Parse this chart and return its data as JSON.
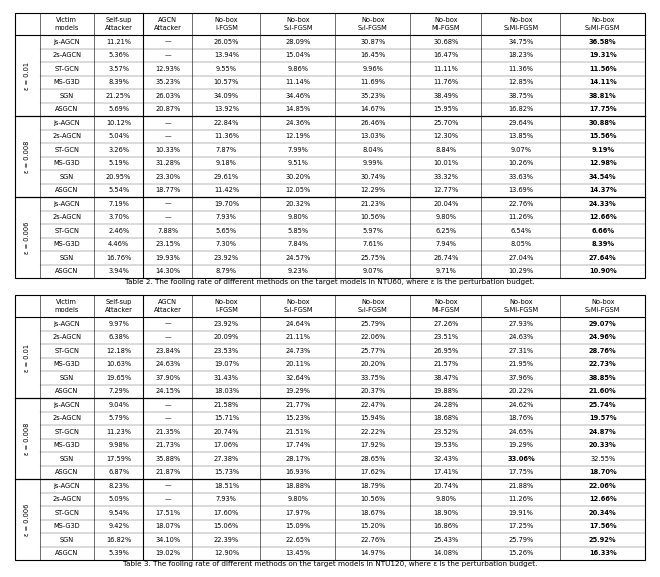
{
  "table2_caption": "Table 2. The fooling rate of different methods on the target models in NTU60, where ε is the perturbation budget.",
  "table3_caption": "Table 3. The fooling rate of different methods on the target models in NTU120, where ε is the perturbation budget.",
  "victim_models": [
    "js-AGCN",
    "2s-AGCN",
    "ST-GCN",
    "MS-G3D",
    "SGN",
    "ASGCN"
  ],
  "epsilon_labels": [
    "ε = 0.01",
    "ε = 0.008",
    "ε = 0.006"
  ],
  "table2": {
    "eps_0.01": {
      "js-AGCN": [
        "11.21%",
        "—",
        "26.05%",
        "28.09%",
        "30.87%",
        "30.68%",
        "34.75%",
        "36.58%"
      ],
      "2s-AGCN": [
        "5.36%",
        "—",
        "13.94%",
        "15.04%",
        "16.45%",
        "16.47%",
        "18.23%",
        "19.31%"
      ],
      "ST-GCN": [
        "3.57%",
        "12.93%",
        "9.55%",
        "9.86%",
        "9.96%",
        "11.11%",
        "11.36%",
        "11.56%"
      ],
      "MS-G3D": [
        "8.39%",
        "35.23%",
        "10.57%",
        "11.14%",
        "11.69%",
        "11.76%",
        "12.85%",
        "14.11%"
      ],
      "SGN": [
        "21.25%",
        "26.03%",
        "34.09%",
        "34.46%",
        "35.23%",
        "38.49%",
        "38.75%",
        "38.81%"
      ],
      "ASGCN": [
        "5.69%",
        "20.87%",
        "13.92%",
        "14.85%",
        "14.67%",
        "15.95%",
        "16.82%",
        "17.75%"
      ]
    },
    "eps_0.008": {
      "js-AGCN": [
        "10.12%",
        "—",
        "22.84%",
        "24.36%",
        "26.46%",
        "25.70%",
        "29.64%",
        "30.88%"
      ],
      "2s-AGCN": [
        "5.04%",
        "—",
        "11.36%",
        "12.19%",
        "13.03%",
        "12.30%",
        "13.85%",
        "15.56%"
      ],
      "ST-GCN": [
        "3.26%",
        "10.33%",
        "7.87%",
        "7.99%",
        "8.04%",
        "8.84%",
        "9.07%",
        "9.19%"
      ],
      "MS-G3D": [
        "5.19%",
        "31.28%",
        "9.18%",
        "9.51%",
        "9.99%",
        "10.01%",
        "10.26%",
        "12.98%"
      ],
      "SGN": [
        "20.95%",
        "23.30%",
        "29.61%",
        "30.20%",
        "30.74%",
        "33.32%",
        "33.63%",
        "34.54%"
      ],
      "ASGCN": [
        "5.54%",
        "18.77%",
        "11.42%",
        "12.05%",
        "12.29%",
        "12.77%",
        "13.69%",
        "14.37%"
      ]
    },
    "eps_0.006": {
      "js-AGCN": [
        "7.19%",
        "—",
        "19.70%",
        "20.32%",
        "21.23%",
        "20.04%",
        "22.76%",
        "24.33%"
      ],
      "2s-AGCN": [
        "3.70%",
        "—",
        "7.93%",
        "9.80%",
        "10.56%",
        "9.80%",
        "11.26%",
        "12.66%"
      ],
      "ST-GCN": [
        "2.46%",
        "7.88%",
        "5.65%",
        "5.85%",
        "5.97%",
        "6.25%",
        "6.54%",
        "6.66%"
      ],
      "MS-G3D": [
        "4.46%",
        "23.15%",
        "7.30%",
        "7.84%",
        "7.61%",
        "7.94%",
        "8.05%",
        "8.39%"
      ],
      "SGN": [
        "16.76%",
        "19.93%",
        "23.92%",
        "24.57%",
        "25.75%",
        "26.74%",
        "27.04%",
        "27.64%"
      ],
      "ASGCN": [
        "3.94%",
        "14.30%",
        "8.79%",
        "9.23%",
        "9.07%",
        "9.71%",
        "10.29%",
        "10.90%"
      ]
    }
  },
  "table3": {
    "eps_0.01": {
      "js-AGCN": [
        "9.97%",
        "—",
        "23.92%",
        "24.64%",
        "25.79%",
        "27.26%",
        "27.93%",
        "29.07%"
      ],
      "2s-AGCN": [
        "6.38%",
        "—",
        "20.09%",
        "21.11%",
        "22.06%",
        "23.51%",
        "24.63%",
        "24.96%"
      ],
      "ST-GCN": [
        "12.18%",
        "23.84%",
        "23.53%",
        "24.73%",
        "25.77%",
        "26.95%",
        "27.31%",
        "28.76%"
      ],
      "MS-G3D": [
        "10.63%",
        "24.63%",
        "19.07%",
        "20.11%",
        "20.20%",
        "21.57%",
        "21.95%",
        "22.73%"
      ],
      "SGN": [
        "19.65%",
        "37.90%",
        "31.43%",
        "32.64%",
        "33.75%",
        "38.47%",
        "37.96%",
        "38.85%"
      ],
      "ASGCN": [
        "7.29%",
        "24.15%",
        "18.03%",
        "19.29%",
        "20.37%",
        "19.88%",
        "20.22%",
        "21.60%"
      ]
    },
    "eps_0.008": {
      "js-AGCN": [
        "9.04%",
        "—",
        "21.58%",
        "21.77%",
        "22.47%",
        "24.28%",
        "24.62%",
        "25.74%"
      ],
      "2s-AGCN": [
        "5.79%",
        "—",
        "15.71%",
        "15.23%",
        "15.94%",
        "18.68%",
        "18.76%",
        "19.57%"
      ],
      "ST-GCN": [
        "11.23%",
        "21.35%",
        "20.74%",
        "21.51%",
        "22.22%",
        "23.52%",
        "24.65%",
        "24.87%"
      ],
      "MS-G3D": [
        "9.98%",
        "21.73%",
        "17.06%",
        "17.74%",
        "17.92%",
        "19.53%",
        "19.29%",
        "20.33%"
      ],
      "SGN": [
        "17.59%",
        "35.88%",
        "27.38%",
        "28.17%",
        "28.65%",
        "32.43%",
        "33.06%",
        "32.55%"
      ],
      "ASGCN": [
        "6.87%",
        "21.87%",
        "15.73%",
        "16.93%",
        "17.62%",
        "17.41%",
        "17.75%",
        "18.70%"
      ]
    },
    "eps_0.006": {
      "js-AGCN": [
        "8.23%",
        "—",
        "18.51%",
        "18.88%",
        "18.79%",
        "20.74%",
        "21.88%",
        "22.06%"
      ],
      "2s-AGCN": [
        "5.09%",
        "—",
        "7.93%",
        "9.80%",
        "10.56%",
        "9.80%",
        "11.26%",
        "12.66%"
      ],
      "ST-GCN": [
        "9.54%",
        "17.51%",
        "17.60%",
        "17.97%",
        "18.67%",
        "18.90%",
        "19.91%",
        "20.34%"
      ],
      "MS-G3D": [
        "9.42%",
        "18.07%",
        "15.06%",
        "15.09%",
        "15.20%",
        "16.86%",
        "17.25%",
        "17.56%"
      ],
      "SGN": [
        "16.82%",
        "34.10%",
        "22.39%",
        "22.65%",
        "22.76%",
        "25.43%",
        "25.79%",
        "25.92%"
      ],
      "ASGCN": [
        "5.39%",
        "19.02%",
        "12.90%",
        "13.45%",
        "14.97%",
        "14.08%",
        "15.26%",
        "16.33%"
      ]
    }
  },
  "bold_cells_t2": {
    "eps_0.01": {
      "js-AGCN": [
        7
      ],
      "2s-AGCN": [
        7
      ],
      "ST-GCN": [
        7
      ],
      "MS-G3D": [
        7
      ],
      "SGN": [
        7
      ],
      "ASGCN": [
        7
      ]
    },
    "eps_0.008": {
      "js-AGCN": [
        7
      ],
      "2s-AGCN": [
        7
      ],
      "ST-GCN": [
        7
      ],
      "MS-G3D": [
        7
      ],
      "SGN": [
        7
      ],
      "ASGCN": [
        7
      ]
    },
    "eps_0.006": {
      "js-AGCN": [
        7
      ],
      "2s-AGCN": [
        7
      ],
      "ST-GCN": [
        7
      ],
      "MS-G3D": [
        7
      ],
      "SGN": [
        7
      ],
      "ASGCN": [
        7
      ]
    }
  },
  "bold_cells_t3": {
    "eps_0.01": {
      "js-AGCN": [
        7
      ],
      "2s-AGCN": [
        7
      ],
      "ST-GCN": [
        7
      ],
      "MS-G3D": [
        7
      ],
      "SGN": [
        7
      ],
      "ASGCN": [
        7
      ]
    },
    "eps_0.008": {
      "js-AGCN": [
        7
      ],
      "2s-AGCN": [
        7
      ],
      "ST-GCN": [
        7
      ],
      "MS-G3D": [
        7
      ],
      "SGN": [
        6
      ],
      "ASGCN": [
        7
      ]
    },
    "eps_0.006": {
      "js-AGCN": [
        7
      ],
      "2s-AGCN": [
        7
      ],
      "ST-GCN": [
        7
      ],
      "MS-G3D": [
        7
      ],
      "SGN": [
        7
      ],
      "ASGCN": [
        7
      ]
    }
  },
  "col_widths_rel": [
    18,
    40,
    36,
    36,
    50,
    55,
    55,
    52,
    58,
    62
  ],
  "header_row1": [
    "",
    "Victim\nmodels",
    "Self-sup\nAttacker",
    "AGCN\nAttacker",
    "No-box\nI-FGSM",
    "No-box\nS₁I-FGSM",
    "No-box\nS₂I-FGSM",
    "No-box\nMI-FGSM",
    "No-box\nS₁MI-FGSM",
    "No-box\nS₂MI-FGSM"
  ]
}
